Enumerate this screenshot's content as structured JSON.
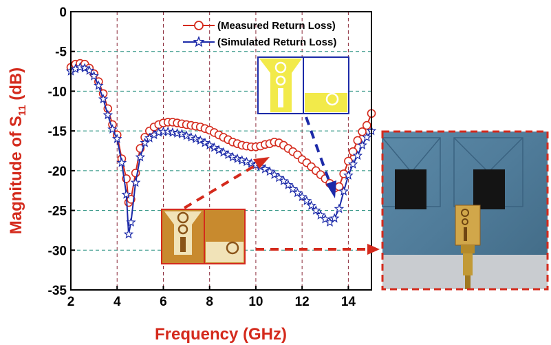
{
  "chart_data": {
    "type": "line",
    "title": "",
    "xlabel": "Frequency (GHz)",
    "ylabel_main": "Magnitude of S",
    "ylabel_sub": "11",
    "ylabel_unit": " (dB)",
    "xlim": [
      2,
      15
    ],
    "ylim": [
      -35,
      0
    ],
    "xticks": [
      2,
      4,
      6,
      8,
      10,
      12,
      14
    ],
    "yticks": [
      0,
      -5,
      -10,
      -15,
      -20,
      -25,
      -30,
      -35
    ],
    "x_gridlines": [
      4,
      6,
      8,
      10,
      12,
      14
    ],
    "y_gridlines": [
      -5,
      -10,
      -15,
      -20,
      -25,
      -30
    ],
    "legend_position": "top-right",
    "series": [
      {
        "name": "(Measured Return Loss)",
        "color": "#d42a1c",
        "marker": "circle",
        "x": [
          2.0,
          2.2,
          2.4,
          2.6,
          2.8,
          3.0,
          3.2,
          3.4,
          3.6,
          3.8,
          4.0,
          4.2,
          4.4,
          4.5,
          4.6,
          4.8,
          5.0,
          5.2,
          5.4,
          5.6,
          5.8,
          6.0,
          6.2,
          6.4,
          6.6,
          6.8,
          7.0,
          7.2,
          7.4,
          7.6,
          7.8,
          8.0,
          8.2,
          8.4,
          8.6,
          8.8,
          9.0,
          9.2,
          9.4,
          9.6,
          9.8,
          10.0,
          10.2,
          10.4,
          10.6,
          10.8,
          11.0,
          11.2,
          11.4,
          11.6,
          11.8,
          12.0,
          12.2,
          12.4,
          12.6,
          12.8,
          13.0,
          13.2,
          13.4,
          13.6,
          13.8,
          14.0,
          14.2,
          14.4,
          14.6,
          14.8,
          15.0
        ],
        "y": [
          -7.0,
          -6.6,
          -6.5,
          -6.6,
          -7.1,
          -7.8,
          -8.8,
          -10.3,
          -12.2,
          -14.2,
          -15.5,
          -18.5,
          -21.0,
          -24.0,
          -23.6,
          -20.3,
          -17.2,
          -15.8,
          -15.0,
          -14.5,
          -14.2,
          -14.0,
          -13.9,
          -13.9,
          -14.0,
          -14.1,
          -14.2,
          -14.3,
          -14.4,
          -14.5,
          -14.7,
          -14.9,
          -15.2,
          -15.5,
          -15.8,
          -16.1,
          -16.4,
          -16.6,
          -16.8,
          -16.9,
          -17.0,
          -17.0,
          -16.9,
          -16.7,
          -16.6,
          -16.4,
          -16.5,
          -16.8,
          -17.2,
          -17.6,
          -18.0,
          -18.6,
          -19.0,
          -19.5,
          -20.0,
          -20.5,
          -21.0,
          -21.6,
          -22.2,
          -22.0,
          -20.4,
          -18.8,
          -17.6,
          -16.2,
          -15.1,
          -14.3,
          -12.8
        ]
      },
      {
        "name": "(Simulated Return Loss)",
        "color": "#1c2aa8",
        "marker": "star",
        "x": [
          2.0,
          2.2,
          2.4,
          2.6,
          2.8,
          3.0,
          3.2,
          3.4,
          3.6,
          3.8,
          4.0,
          4.2,
          4.4,
          4.5,
          4.6,
          4.8,
          5.0,
          5.2,
          5.4,
          5.6,
          5.8,
          6.0,
          6.2,
          6.4,
          6.6,
          6.8,
          7.0,
          7.2,
          7.4,
          7.6,
          7.8,
          8.0,
          8.2,
          8.4,
          8.6,
          8.8,
          9.0,
          9.2,
          9.4,
          9.6,
          9.8,
          10.0,
          10.2,
          10.4,
          10.6,
          10.8,
          11.0,
          11.2,
          11.4,
          11.6,
          11.8,
          12.0,
          12.2,
          12.4,
          12.6,
          12.8,
          13.0,
          13.2,
          13.4,
          13.6,
          13.8,
          14.0,
          14.2,
          14.4,
          14.6,
          14.8,
          15.0
        ],
        "y": [
          -7.5,
          -7.2,
          -7.0,
          -7.1,
          -7.4,
          -8.1,
          -9.3,
          -11.0,
          -13.0,
          -14.8,
          -16.0,
          -19.0,
          -23.0,
          -28.0,
          -26.5,
          -21.5,
          -18.3,
          -16.5,
          -15.9,
          -15.5,
          -15.2,
          -15.1,
          -15.1,
          -15.2,
          -15.3,
          -15.4,
          -15.6,
          -15.8,
          -16.0,
          -16.2,
          -16.5,
          -16.8,
          -17.1,
          -17.4,
          -17.7,
          -18.0,
          -18.3,
          -18.5,
          -18.7,
          -18.9,
          -19.1,
          -19.3,
          -19.5,
          -19.8,
          -20.1,
          -20.5,
          -20.9,
          -21.3,
          -21.8,
          -22.3,
          -22.8,
          -23.3,
          -23.8,
          -24.4,
          -25.0,
          -25.6,
          -26.1,
          -26.5,
          -26.0,
          -24.8,
          -22.6,
          -20.6,
          -19.2,
          -18.1,
          -16.8,
          -15.8,
          -15.0
        ]
      }
    ]
  }
}
